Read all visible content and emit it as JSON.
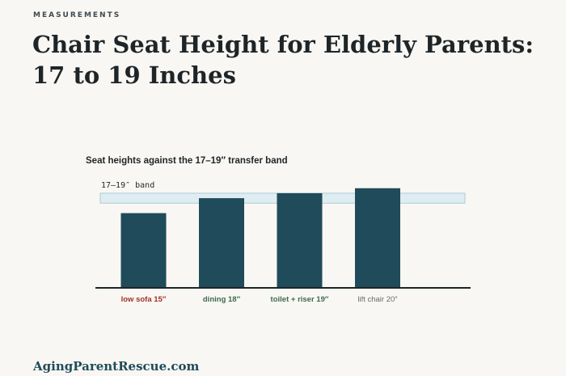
{
  "eyebrow": "MEASUREMENTS",
  "title": "Chair Seat Height for Elderly Parents: 17 to 19 Inches",
  "footer": "AgingParentRescue.com",
  "colors": {
    "bar": "#1f4b5a",
    "band_fill": "#deedf2",
    "band_stroke": "#a9ccd8",
    "axis": "#1e2528",
    "label_low": "#a03327",
    "label_in": "#3d6b4c",
    "label_high": "#6b6b6b"
  },
  "chart_data": {
    "type": "bar",
    "title": "Seat heights against the 17–19″ transfer band",
    "band": {
      "label": "17–19″ band",
      "from": 17,
      "to": 19
    },
    "categories": [
      "low sofa 15″",
      "dining 18″",
      "toilet + riser 19″",
      "lift chair 20″"
    ],
    "values": [
      15,
      18,
      19,
      20
    ],
    "category_status": [
      "below",
      "within",
      "within",
      "above"
    ],
    "ylim": [
      0,
      21.1
    ]
  }
}
